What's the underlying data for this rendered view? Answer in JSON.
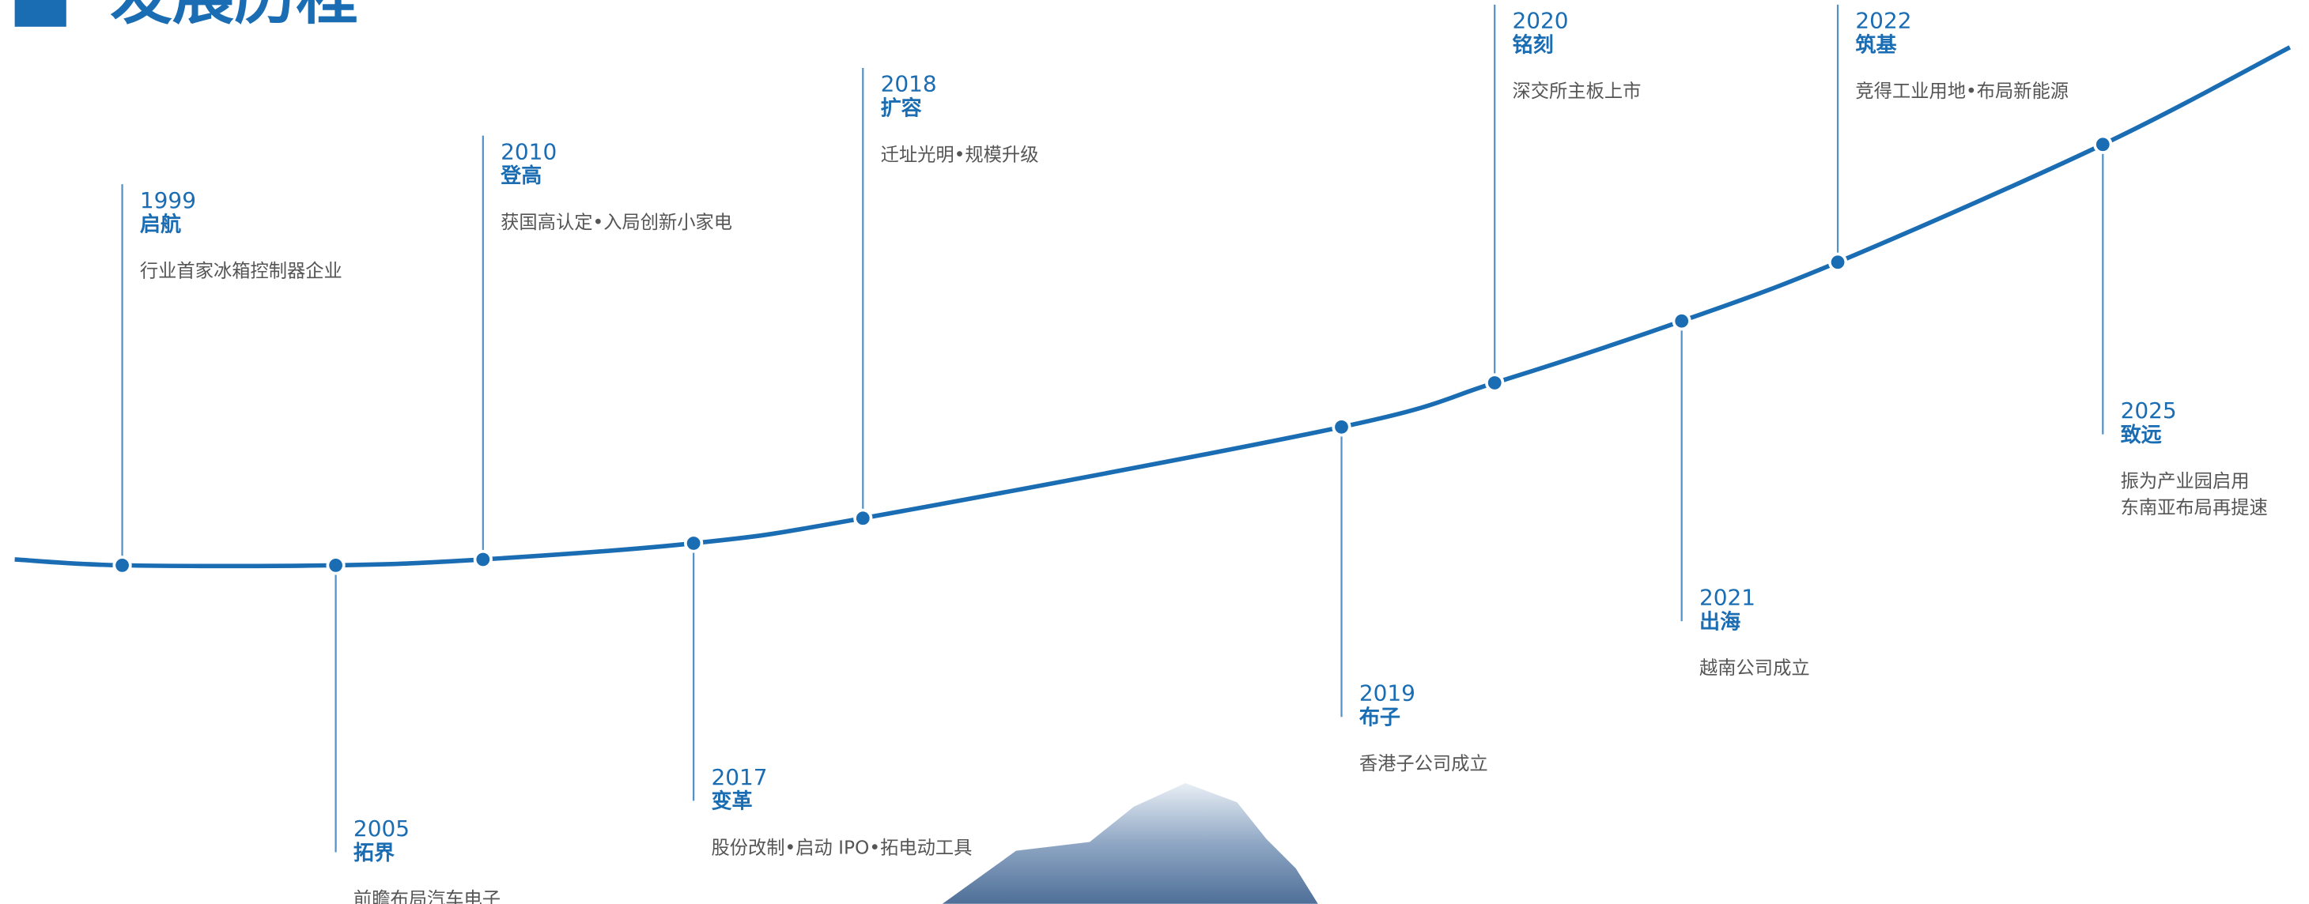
{
  "header": {
    "title": "发展历程"
  },
  "milestones": [
    {
      "year": "1999",
      "title": "启航",
      "desc": [
        "行业首家冰箱控制器企业"
      ]
    },
    {
      "year": "2005",
      "title": "拓界",
      "desc": [
        "前瞻布局汽车电子"
      ]
    },
    {
      "year": "2010",
      "title": "登高",
      "desc": [
        "获国高认定•入局创新小家电"
      ]
    },
    {
      "year": "2017",
      "title": "变革",
      "desc": [
        "股份改制•启动 IPO•拓电动工具"
      ]
    },
    {
      "year": "2018",
      "title": "扩容",
      "desc": [
        "迁址光明•规模升级"
      ]
    },
    {
      "year": "2019",
      "title": "布子",
      "desc": [
        "香港子公司成立"
      ]
    },
    {
      "year": "2020",
      "title": "铭刻",
      "desc": [
        "深交所主板上市"
      ]
    },
    {
      "year": "2021",
      "title": "出海",
      "desc": [
        "越南公司成立"
      ]
    },
    {
      "year": "2022",
      "title": "筑基",
      "desc": [
        "竞得工业用地•布局新能源"
      ]
    },
    {
      "year": "2025",
      "title": "致远",
      "desc": [
        "振为产业园启用",
        "东南亚布局再提速"
      ]
    }
  ]
}
